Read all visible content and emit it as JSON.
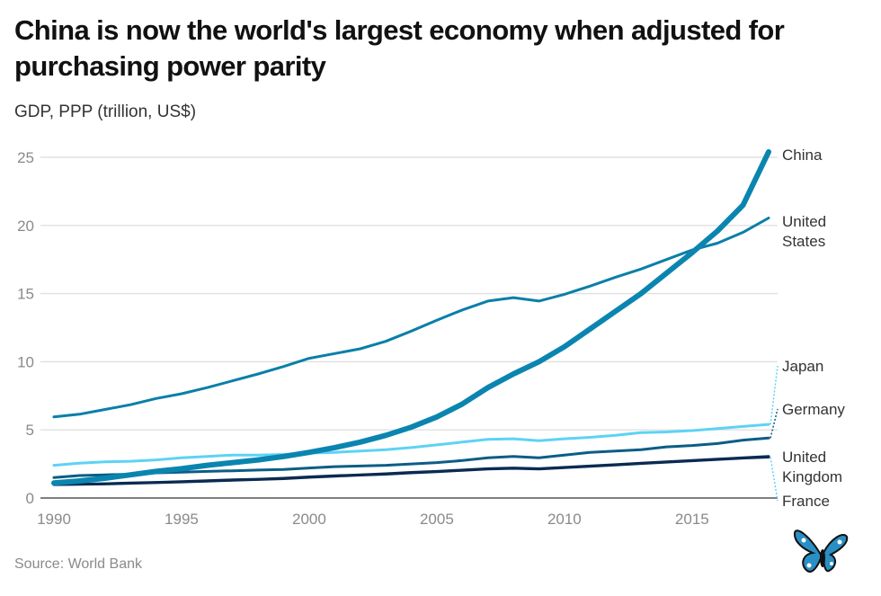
{
  "header": {
    "title": "China is now the world's largest economy when adjusted for purchasing power parity",
    "subtitle": "GDP, PPP (trillion, US$)"
  },
  "footer": {
    "source": "Source: World Bank",
    "logo_icon": "butterfly-logo-icon"
  },
  "chart_data": {
    "type": "line",
    "title": "China is now the world's largest economy when adjusted for purchasing power parity",
    "subtitle": "GDP, PPP (trillion, US$)",
    "xlabel": "",
    "ylabel": "GDP, PPP (trillion, US$)",
    "x": [
      1990,
      1991,
      1992,
      1993,
      1994,
      1995,
      1996,
      1997,
      1998,
      1999,
      2000,
      2001,
      2002,
      2003,
      2004,
      2005,
      2006,
      2007,
      2008,
      2009,
      2010,
      2011,
      2012,
      2013,
      2014,
      2015,
      2016,
      2017,
      2018
    ],
    "xlim": [
      1990,
      2018
    ],
    "ylim": [
      0,
      25
    ],
    "xticks": [
      1990,
      1995,
      2000,
      2005,
      2010,
      2015
    ],
    "yticks": [
      0,
      5,
      10,
      15,
      20,
      25
    ],
    "grid": true,
    "legend": "direct-labels-right",
    "source": "World Bank",
    "series": [
      {
        "name": "China",
        "label_lines": [
          "China"
        ],
        "color": "#0a85b0",
        "emphasis": true,
        "values": [
          1.1,
          1.25,
          1.45,
          1.7,
          1.95,
          2.15,
          2.4,
          2.6,
          2.8,
          3.05,
          3.35,
          3.7,
          4.1,
          4.6,
          5.2,
          5.95,
          6.9,
          8.1,
          9.1,
          10.0,
          11.1,
          12.4,
          13.7,
          15.0,
          16.5,
          18.0,
          19.6,
          21.5,
          25.4
        ]
      },
      {
        "name": "United States",
        "label_lines": [
          "United",
          "States"
        ],
        "color": "#0a7fa8",
        "values": [
          5.95,
          6.15,
          6.5,
          6.85,
          7.3,
          7.65,
          8.1,
          8.6,
          9.1,
          9.65,
          10.25,
          10.6,
          10.95,
          11.5,
          12.25,
          13.05,
          13.8,
          14.45,
          14.7,
          14.45,
          14.95,
          15.55,
          16.2,
          16.8,
          17.5,
          18.2,
          18.7,
          19.5,
          20.55
        ]
      },
      {
        "name": "Japan",
        "label_lines": [
          "Japan"
        ],
        "color": "#5cd3f5",
        "values": [
          2.4,
          2.55,
          2.65,
          2.7,
          2.8,
          2.95,
          3.05,
          3.15,
          3.15,
          3.2,
          3.3,
          3.35,
          3.45,
          3.55,
          3.7,
          3.9,
          4.1,
          4.3,
          4.35,
          4.2,
          4.35,
          4.45,
          4.6,
          4.8,
          4.85,
          4.95,
          5.1,
          5.25,
          5.4
        ]
      },
      {
        "name": "Germany",
        "label_lines": [
          "Germany"
        ],
        "color": "#0c5d85",
        "values": [
          1.5,
          1.65,
          1.7,
          1.75,
          1.85,
          1.9,
          1.95,
          2.0,
          2.05,
          2.1,
          2.2,
          2.3,
          2.35,
          2.4,
          2.5,
          2.6,
          2.75,
          2.95,
          3.05,
          2.95,
          3.15,
          3.35,
          3.45,
          3.55,
          3.75,
          3.85,
          4.0,
          4.25,
          4.4
        ]
      },
      {
        "name": "United Kingdom",
        "label_lines": [
          "United",
          "Kingdom"
        ],
        "color": "#0a2a52",
        "values": [
          1.0,
          1.02,
          1.05,
          1.1,
          1.15,
          1.2,
          1.27,
          1.33,
          1.38,
          1.45,
          1.55,
          1.63,
          1.7,
          1.78,
          1.88,
          1.95,
          2.05,
          2.15,
          2.2,
          2.15,
          2.25,
          2.35,
          2.45,
          2.55,
          2.65,
          2.75,
          2.85,
          2.95,
          3.05
        ]
      },
      {
        "name": "France",
        "label_lines": [
          "France"
        ],
        "color": "#0a2a52",
        "values": [
          0.98,
          1.0,
          1.03,
          1.08,
          1.13,
          1.18,
          1.24,
          1.3,
          1.36,
          1.42,
          1.52,
          1.6,
          1.68,
          1.75,
          1.85,
          1.93,
          2.03,
          2.13,
          2.18,
          2.13,
          2.23,
          2.33,
          2.43,
          2.53,
          2.63,
          2.73,
          2.83,
          2.93,
          3.0
        ]
      }
    ]
  }
}
